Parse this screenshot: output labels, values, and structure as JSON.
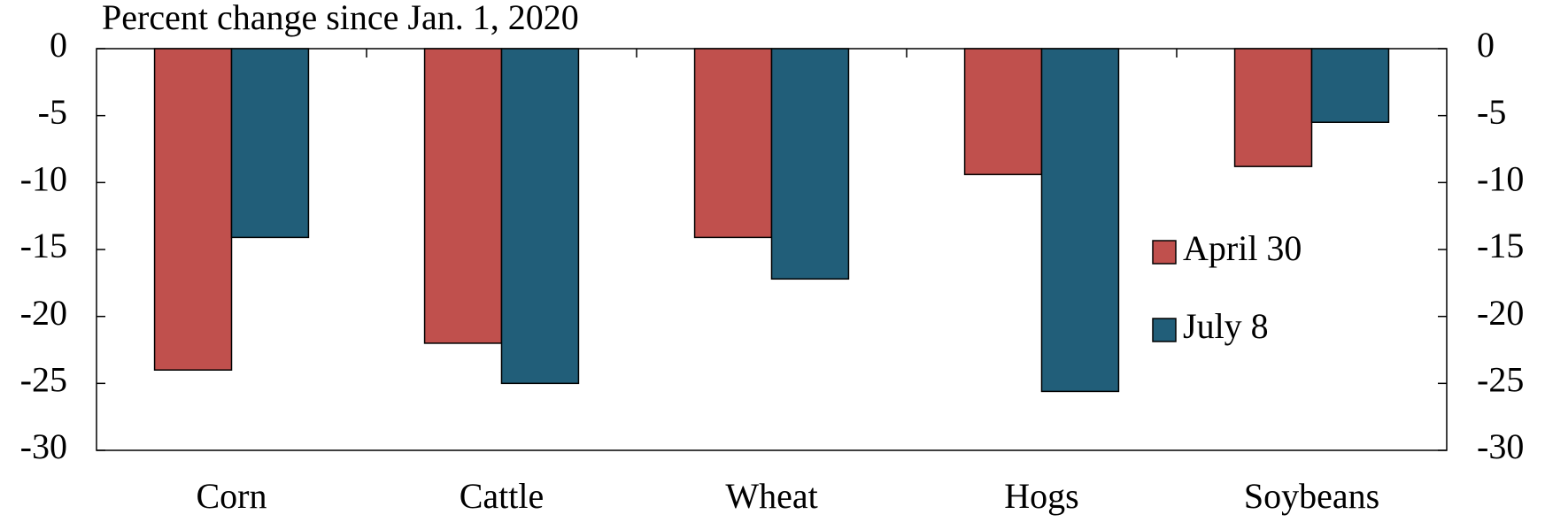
{
  "chart_data": {
    "type": "bar",
    "title": "Percent change since Jan. 1, 2020",
    "categories": [
      "Corn",
      "Cattle",
      "Wheat",
      "Hogs",
      "Soybeans"
    ],
    "series": [
      {
        "name": "April 30",
        "color": "#c0504d",
        "values": [
          -24.0,
          -22.0,
          -14.1,
          -9.4,
          -8.8
        ]
      },
      {
        "name": "July 8",
        "color": "#215e79",
        "values": [
          -14.1,
          -25.0,
          -17.2,
          -25.6,
          -5.5
        ]
      }
    ],
    "ylim": [
      -30,
      0
    ],
    "yticks": [
      0,
      -5,
      -10,
      -15,
      -20,
      -25,
      -30
    ],
    "y2lim": [
      -30,
      0
    ],
    "y2ticks": [
      0,
      -5,
      -10,
      -15,
      -20,
      -25,
      -30
    ],
    "grid": false,
    "legend": "right"
  }
}
